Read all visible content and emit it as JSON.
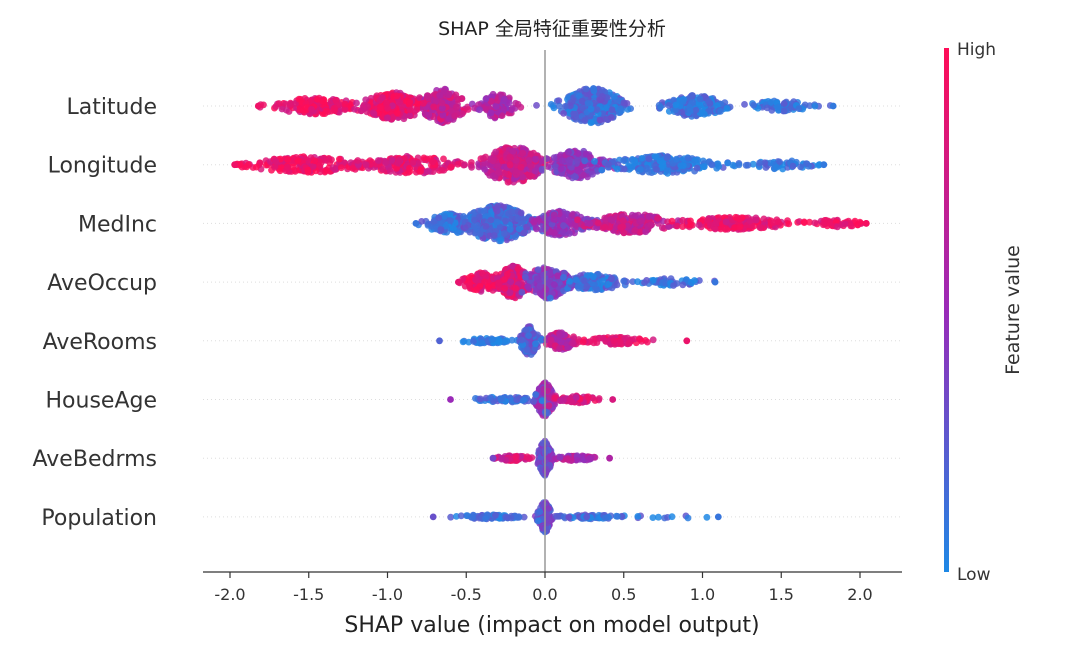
{
  "chart_data": {
    "type": "scatter",
    "subtype": "shap-beeswarm",
    "title": "SHAP 全局特征重要性分析",
    "xlabel": "SHAP value (impact on model output)",
    "ylabel": "",
    "xlim": [
      -2.1,
      2.25
    ],
    "xticks": [
      -2.0,
      -1.5,
      -1.0,
      -0.5,
      0.0,
      0.5,
      1.0,
      1.5,
      2.0
    ],
    "xtick_labels": [
      "-2.0",
      "-1.5",
      "-1.0",
      "-0.5",
      "0.0",
      "0.5",
      "1.0",
      "1.5",
      "2.0"
    ],
    "grid": false,
    "colors": {
      "high": "#ff0d57",
      "low": "#1e88e5",
      "axis": "#333333",
      "zero_line": "#999999"
    },
    "colorbar": {
      "title": "Feature value",
      "high_label": "High",
      "low_label": "Low"
    },
    "features": [
      {
        "name": "Latitude",
        "min": -1.82,
        "max": 1.83,
        "clusters": [
          {
            "x": -1.45,
            "s": 0.22,
            "w": 0.45,
            "v": 0.92,
            "n": 160
          },
          {
            "x": -0.95,
            "s": 0.16,
            "w": 0.75,
            "v": 0.88,
            "n": 240
          },
          {
            "x": -0.65,
            "s": 0.1,
            "w": 0.95,
            "v": 0.72,
            "n": 180
          },
          {
            "x": -0.3,
            "s": 0.08,
            "w": 0.7,
            "v": 0.6,
            "n": 120
          },
          {
            "x": 0.3,
            "s": 0.14,
            "w": 1.0,
            "v": 0.15,
            "n": 340
          },
          {
            "x": 0.95,
            "s": 0.14,
            "w": 0.6,
            "v": 0.1,
            "n": 180
          },
          {
            "x": 1.5,
            "s": 0.15,
            "w": 0.3,
            "v": 0.08,
            "n": 70
          }
        ]
      },
      {
        "name": "Longitude",
        "min": -1.97,
        "max": 1.77,
        "clusters": [
          {
            "x": -1.5,
            "s": 0.28,
            "w": 0.45,
            "v": 0.92,
            "n": 210
          },
          {
            "x": -0.85,
            "s": 0.22,
            "w": 0.5,
            "v": 0.88,
            "n": 170
          },
          {
            "x": -0.2,
            "s": 0.15,
            "w": 1.0,
            "v": 0.72,
            "n": 320
          },
          {
            "x": 0.2,
            "s": 0.12,
            "w": 0.8,
            "v": 0.45,
            "n": 220
          },
          {
            "x": 0.75,
            "s": 0.25,
            "w": 0.5,
            "v": 0.1,
            "n": 200
          },
          {
            "x": 1.5,
            "s": 0.15,
            "w": 0.25,
            "v": 0.08,
            "n": 55
          }
        ]
      },
      {
        "name": "MedInc",
        "min": -0.82,
        "max": 2.04,
        "clusters": [
          {
            "x": -0.6,
            "s": 0.12,
            "w": 0.55,
            "v": 0.1,
            "n": 120
          },
          {
            "x": -0.3,
            "s": 0.15,
            "w": 1.0,
            "v": 0.18,
            "n": 340
          },
          {
            "x": 0.1,
            "s": 0.12,
            "w": 0.7,
            "v": 0.45,
            "n": 200
          },
          {
            "x": 0.55,
            "s": 0.18,
            "w": 0.55,
            "v": 0.72,
            "n": 200
          },
          {
            "x": 1.2,
            "s": 0.28,
            "w": 0.35,
            "v": 0.9,
            "n": 180
          },
          {
            "x": 1.85,
            "s": 0.13,
            "w": 0.2,
            "v": 0.95,
            "n": 45
          }
        ]
      },
      {
        "name": "AveOccup",
        "min": -0.55,
        "max": 1.08,
        "clusters": [
          {
            "x": -0.38,
            "s": 0.1,
            "w": 0.55,
            "v": 0.88,
            "n": 120
          },
          {
            "x": -0.2,
            "s": 0.07,
            "w": 0.9,
            "v": 0.8,
            "n": 180
          },
          {
            "x": 0.02,
            "s": 0.1,
            "w": 0.9,
            "v": 0.4,
            "n": 220
          },
          {
            "x": 0.3,
            "s": 0.15,
            "w": 0.45,
            "v": 0.15,
            "n": 130
          },
          {
            "x": 0.8,
            "s": 0.15,
            "w": 0.2,
            "v": 0.1,
            "n": 50
          }
        ]
      },
      {
        "name": "AveRooms",
        "min": -0.67,
        "max": 0.9,
        "clusters": [
          {
            "x": -0.1,
            "s": 0.04,
            "w": 0.8,
            "v": 0.2,
            "n": 150
          },
          {
            "x": -0.35,
            "s": 0.12,
            "w": 0.15,
            "v": 0.1,
            "n": 55
          },
          {
            "x": 0.1,
            "s": 0.07,
            "w": 0.5,
            "v": 0.7,
            "n": 110
          },
          {
            "x": 0.45,
            "s": 0.14,
            "w": 0.2,
            "v": 0.9,
            "n": 70
          }
        ]
      },
      {
        "name": "HouseAge",
        "min": -0.6,
        "max": 0.43,
        "clusters": [
          {
            "x": 0.0,
            "s": 0.04,
            "w": 0.95,
            "v": 0.5,
            "n": 170
          },
          {
            "x": -0.25,
            "s": 0.14,
            "w": 0.15,
            "v": 0.15,
            "n": 65
          },
          {
            "x": 0.2,
            "s": 0.1,
            "w": 0.2,
            "v": 0.8,
            "n": 65
          }
        ]
      },
      {
        "name": "AveBedrms",
        "min": -0.33,
        "max": 0.41,
        "clusters": [
          {
            "x": 0.0,
            "s": 0.03,
            "w": 0.95,
            "v": 0.35,
            "n": 170
          },
          {
            "x": -0.2,
            "s": 0.08,
            "w": 0.15,
            "v": 0.8,
            "n": 60
          },
          {
            "x": 0.2,
            "s": 0.08,
            "w": 0.15,
            "v": 0.6,
            "n": 60
          }
        ]
      },
      {
        "name": "Population",
        "min": -0.71,
        "max": 1.1,
        "clusters": [
          {
            "x": 0.0,
            "s": 0.03,
            "w": 0.85,
            "v": 0.3,
            "n": 150
          },
          {
            "x": -0.35,
            "s": 0.15,
            "w": 0.12,
            "v": 0.1,
            "n": 70
          },
          {
            "x": 0.3,
            "s": 0.15,
            "w": 0.12,
            "v": 0.15,
            "n": 60
          },
          {
            "x": 0.75,
            "s": 0.2,
            "w": 0.05,
            "v": 0.1,
            "n": 12
          }
        ]
      }
    ]
  }
}
